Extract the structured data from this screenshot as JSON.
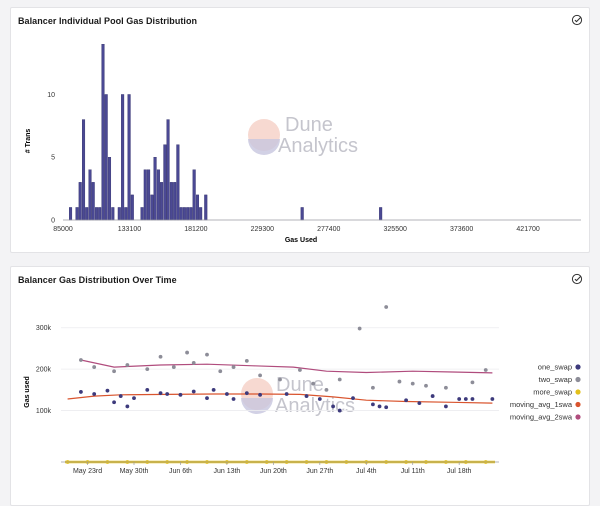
{
  "watermark": {
    "line1": "Dune",
    "line2": "Analytics"
  },
  "charts": {
    "hist": {
      "title": "Balancer Individual Pool Gas Distribution",
      "xlabel": "Gas Used",
      "ylabel": "# Trans"
    },
    "time": {
      "title": "Balancer Gas Distribution Over Time",
      "ylabel": "Gas used"
    }
  },
  "chart_data": [
    {
      "type": "bar",
      "title": "Balancer Individual Pool Gas Distribution",
      "xlabel": "Gas Used",
      "ylabel": "# Trans",
      "xlim": [
        85000,
        460000
      ],
      "ylim": [
        0,
        14.5
      ],
      "bin_width": 2350,
      "xticks": [
        85000,
        133100,
        181200,
        229300,
        277400,
        325500,
        373600,
        421700
      ],
      "yticks": [
        0,
        5,
        10
      ],
      "bins": [
        {
          "x": 89500,
          "count": 1
        },
        {
          "x": 94200,
          "count": 1
        },
        {
          "x": 96500,
          "count": 3
        },
        {
          "x": 98900,
          "count": 8
        },
        {
          "x": 101200,
          "count": 1
        },
        {
          "x": 103600,
          "count": 4
        },
        {
          "x": 105900,
          "count": 3
        },
        {
          "x": 108300,
          "count": 1
        },
        {
          "x": 110600,
          "count": 1
        },
        {
          "x": 113000,
          "count": 14
        },
        {
          "x": 115300,
          "count": 10
        },
        {
          "x": 117700,
          "count": 5
        },
        {
          "x": 120100,
          "count": 1
        },
        {
          "x": 124800,
          "count": 1
        },
        {
          "x": 127200,
          "count": 10
        },
        {
          "x": 129500,
          "count": 1
        },
        {
          "x": 131900,
          "count": 10
        },
        {
          "x": 134200,
          "count": 2
        },
        {
          "x": 141300,
          "count": 1
        },
        {
          "x": 143600,
          "count": 4
        },
        {
          "x": 146000,
          "count": 4
        },
        {
          "x": 148400,
          "count": 2
        },
        {
          "x": 150700,
          "count": 5
        },
        {
          "x": 153100,
          "count": 4
        },
        {
          "x": 155400,
          "count": 3
        },
        {
          "x": 157800,
          "count": 6
        },
        {
          "x": 160100,
          "count": 8
        },
        {
          "x": 162500,
          "count": 3
        },
        {
          "x": 164900,
          "count": 3
        },
        {
          "x": 167200,
          "count": 6
        },
        {
          "x": 169600,
          "count": 1
        },
        {
          "x": 171900,
          "count": 1
        },
        {
          "x": 174300,
          "count": 1
        },
        {
          "x": 176600,
          "count": 1
        },
        {
          "x": 179000,
          "count": 4
        },
        {
          "x": 181400,
          "count": 2
        },
        {
          "x": 183700,
          "count": 1
        },
        {
          "x": 187400,
          "count": 2
        },
        {
          "x": 257200,
          "count": 1
        },
        {
          "x": 314000,
          "count": 1
        }
      ]
    },
    {
      "type": "scatter",
      "title": "Balancer Gas Distribution Over Time",
      "ylabel": "Gas used",
      "ylim": [
        0,
        350000
      ],
      "yticks": [
        "100k",
        "200k",
        "300k"
      ],
      "xlim": [
        "2021-05-19",
        "2021-07-24"
      ],
      "xticks": [
        "May 23rd",
        "May 30th",
        "Jun 6th",
        "Jun 13th",
        "Jun 20th",
        "Jun 27th",
        "Jul 4th",
        "Jul 11th",
        "Jul 18th"
      ],
      "legend_position": "right",
      "series": [
        {
          "name": "one_swap",
          "color": "#3d3a7c",
          "kind": "points",
          "points": [
            [
              "2021-05-22",
              145000
            ],
            [
              "2021-05-24",
              140000
            ],
            [
              "2021-05-26",
              148000
            ],
            [
              "2021-05-27",
              120000
            ],
            [
              "2021-05-28",
              135000
            ],
            [
              "2021-05-29",
              110000
            ],
            [
              "2021-05-30",
              130000
            ],
            [
              "2021-06-01",
              150000
            ],
            [
              "2021-06-03",
              142000
            ],
            [
              "2021-06-04",
              140000
            ],
            [
              "2021-06-06",
              138000
            ],
            [
              "2021-06-08",
              146000
            ],
            [
              "2021-06-10",
              130000
            ],
            [
              "2021-06-11",
              150000
            ],
            [
              "2021-06-13",
              140000
            ],
            [
              "2021-06-14",
              128000
            ],
            [
              "2021-06-16",
              142000
            ],
            [
              "2021-06-18",
              138000
            ],
            [
              "2021-06-22",
              140000
            ],
            [
              "2021-06-25",
              135000
            ],
            [
              "2021-06-27",
              128000
            ],
            [
              "2021-06-29",
              110000
            ],
            [
              "2021-06-30",
              100000
            ],
            [
              "2021-07-02",
              130000
            ],
            [
              "2021-07-05",
              115000
            ],
            [
              "2021-07-06",
              110000
            ],
            [
              "2021-07-07",
              108000
            ],
            [
              "2021-07-10",
              125000
            ],
            [
              "2021-07-12",
              118000
            ],
            [
              "2021-07-14",
              135000
            ],
            [
              "2021-07-16",
              110000
            ],
            [
              "2021-07-18",
              128000
            ],
            [
              "2021-07-19",
              128000
            ],
            [
              "2021-07-20",
              128000
            ],
            [
              "2021-07-23",
              128000
            ]
          ]
        },
        {
          "name": "two_swap",
          "color": "#8d8d98",
          "kind": "points",
          "points": [
            [
              "2021-05-22",
              222000
            ],
            [
              "2021-05-24",
              205000
            ],
            [
              "2021-05-27",
              195000
            ],
            [
              "2021-05-29",
              210000
            ],
            [
              "2021-06-01",
              200000
            ],
            [
              "2021-06-03",
              230000
            ],
            [
              "2021-06-05",
              205000
            ],
            [
              "2021-06-07",
              240000
            ],
            [
              "2021-06-08",
              215000
            ],
            [
              "2021-06-10",
              235000
            ],
            [
              "2021-06-12",
              195000
            ],
            [
              "2021-06-14",
              205000
            ],
            [
              "2021-06-16",
              220000
            ],
            [
              "2021-06-18",
              185000
            ],
            [
              "2021-06-21",
              175000
            ],
            [
              "2021-06-24",
              198000
            ],
            [
              "2021-06-26",
              165000
            ],
            [
              "2021-06-28",
              150000
            ],
            [
              "2021-06-30",
              175000
            ],
            [
              "2021-07-03",
              298000
            ],
            [
              "2021-07-05",
              155000
            ],
            [
              "2021-07-07",
              350000
            ],
            [
              "2021-07-09",
              170000
            ],
            [
              "2021-07-11",
              165000
            ],
            [
              "2021-07-13",
              160000
            ],
            [
              "2021-07-16",
              155000
            ],
            [
              "2021-07-20",
              168000
            ],
            [
              "2021-07-22",
              198000
            ]
          ]
        },
        {
          "name": "more_swap",
          "color": "#e3c01a",
          "kind": "points",
          "points": [
            [
              "2021-05-20",
              0
            ],
            [
              "2021-05-23",
              0
            ],
            [
              "2021-05-26",
              0
            ],
            [
              "2021-05-29",
              0
            ],
            [
              "2021-06-01",
              0
            ],
            [
              "2021-06-04",
              0
            ],
            [
              "2021-06-07",
              0
            ],
            [
              "2021-06-10",
              0
            ],
            [
              "2021-06-13",
              0
            ],
            [
              "2021-06-16",
              0
            ],
            [
              "2021-06-19",
              0
            ],
            [
              "2021-06-22",
              0
            ],
            [
              "2021-06-25",
              0
            ],
            [
              "2021-06-28",
              0
            ],
            [
              "2021-07-01",
              0
            ],
            [
              "2021-07-04",
              0
            ],
            [
              "2021-07-07",
              0
            ],
            [
              "2021-07-10",
              0
            ],
            [
              "2021-07-13",
              0
            ],
            [
              "2021-07-16",
              0
            ],
            [
              "2021-07-19",
              0
            ],
            [
              "2021-07-22",
              0
            ]
          ]
        },
        {
          "name": "moving_avg_1swa",
          "color": "#d9542e",
          "kind": "line",
          "points": [
            [
              "2021-05-20",
              128000
            ],
            [
              "2021-05-24",
              135000
            ],
            [
              "2021-05-28",
              138000
            ],
            [
              "2021-06-04",
              139000
            ],
            [
              "2021-06-11",
              140000
            ],
            [
              "2021-06-18",
              140000
            ],
            [
              "2021-06-24",
              139000
            ],
            [
              "2021-06-29",
              133000
            ],
            [
              "2021-07-04",
              125000
            ],
            [
              "2021-07-10",
              122000
            ],
            [
              "2021-07-17",
              120000
            ],
            [
              "2021-07-23",
              118000
            ]
          ]
        },
        {
          "name": "moving_avg_2swa",
          "color": "#b04c7d",
          "kind": "line",
          "points": [
            [
              "2021-05-22",
              222000
            ],
            [
              "2021-05-27",
              205000
            ],
            [
              "2021-06-03",
              210000
            ],
            [
              "2021-06-10",
              212000
            ],
            [
              "2021-06-17",
              208000
            ],
            [
              "2021-06-23",
              205000
            ],
            [
              "2021-06-28",
              195000
            ],
            [
              "2021-07-04",
              192000
            ],
            [
              "2021-07-11",
              195000
            ],
            [
              "2021-07-17",
              193000
            ],
            [
              "2021-07-23",
              191000
            ]
          ]
        }
      ]
    }
  ]
}
